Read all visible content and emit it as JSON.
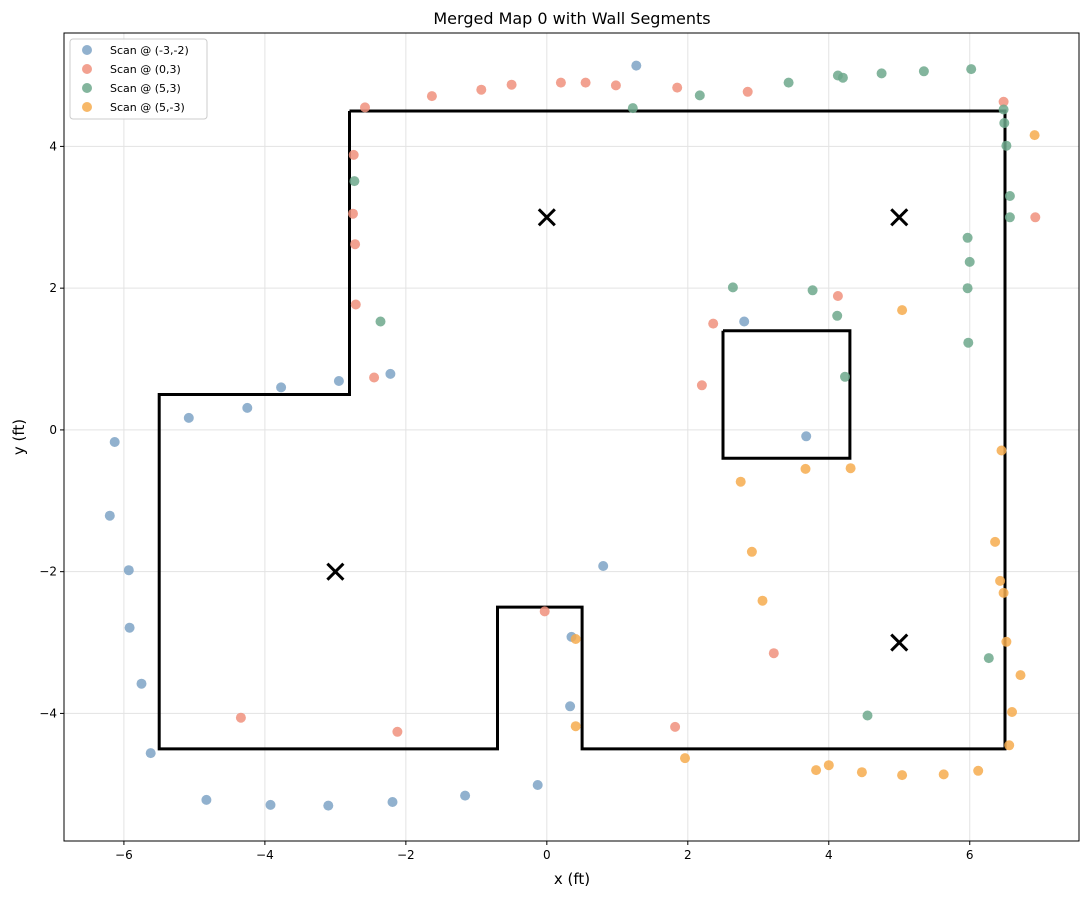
{
  "chart_data": {
    "type": "scatter",
    "title": "Merged Map 0 with Wall Segments",
    "xlabel": "x (ft)",
    "ylabel": "y (ft)",
    "xlim": [
      -6.85,
      7.55
    ],
    "ylim": [
      -5.8,
      5.6
    ],
    "xticks": [
      -6,
      -4,
      -2,
      0,
      2,
      4,
      6
    ],
    "yticks": [
      -4,
      -2,
      0,
      2,
      4
    ],
    "grid": true,
    "legend_position": "top-left",
    "series": [
      {
        "name": "Scan @ (-3,-2)",
        "color": "#7ea3c6",
        "points": [
          [
            1.27,
            5.14
          ],
          [
            -2.95,
            0.69
          ],
          [
            -2.22,
            0.79
          ],
          [
            -3.77,
            0.6
          ],
          [
            -4.25,
            0.31
          ],
          [
            -5.08,
            0.17
          ],
          [
            -6.13,
            -0.17
          ],
          [
            -6.2,
            -1.21
          ],
          [
            -5.93,
            -1.98
          ],
          [
            -5.92,
            -2.79
          ],
          [
            -5.75,
            -3.58
          ],
          [
            -5.62,
            -4.56
          ],
          [
            -4.83,
            -5.22
          ],
          [
            -3.92,
            -5.29
          ],
          [
            -3.1,
            -5.3
          ],
          [
            -2.19,
            -5.25
          ],
          [
            -1.16,
            -5.16
          ],
          [
            -0.13,
            -5.01
          ],
          [
            0.33,
            -3.9
          ],
          [
            0.35,
            -2.92
          ],
          [
            0.8,
            -1.92
          ],
          [
            2.8,
            1.53
          ],
          [
            3.68,
            -0.09
          ]
        ]
      },
      {
        "name": "Scan @ (0,3)",
        "color": "#f0907c",
        "points": [
          [
            -2.58,
            4.55
          ],
          [
            -1.63,
            4.71
          ],
          [
            -0.93,
            4.8
          ],
          [
            -0.5,
            4.87
          ],
          [
            0.2,
            4.9
          ],
          [
            0.55,
            4.9
          ],
          [
            0.98,
            4.86
          ],
          [
            1.85,
            4.83
          ],
          [
            2.85,
            4.77
          ],
          [
            6.48,
            4.63
          ],
          [
            6.93,
            3.0
          ],
          [
            -2.74,
            3.88
          ],
          [
            -2.75,
            3.05
          ],
          [
            -2.72,
            2.62
          ],
          [
            -2.71,
            1.77
          ],
          [
            -2.45,
            0.74
          ],
          [
            2.36,
            1.5
          ],
          [
            4.13,
            1.89
          ],
          [
            2.2,
            0.63
          ],
          [
            -0.03,
            -2.56
          ],
          [
            3.22,
            -3.15
          ],
          [
            1.82,
            -4.19
          ],
          [
            -4.34,
            -4.06
          ],
          [
            -2.12,
            -4.26
          ]
        ]
      },
      {
        "name": "Scan @ (5,3)",
        "color": "#6da88c",
        "points": [
          [
            1.22,
            4.54
          ],
          [
            2.17,
            4.72
          ],
          [
            3.43,
            4.9
          ],
          [
            4.13,
            5.0
          ],
          [
            4.2,
            4.97
          ],
          [
            4.75,
            5.03
          ],
          [
            5.35,
            5.06
          ],
          [
            6.02,
            5.09
          ],
          [
            6.48,
            4.52
          ],
          [
            6.49,
            4.33
          ],
          [
            6.52,
            4.01
          ],
          [
            6.57,
            3.3
          ],
          [
            6.57,
            3.0
          ],
          [
            5.97,
            2.71
          ],
          [
            6.0,
            2.37
          ],
          [
            5.97,
            2.0
          ],
          [
            5.98,
            1.23
          ],
          [
            -2.73,
            3.51
          ],
          [
            -2.36,
            1.53
          ],
          [
            2.64,
            2.01
          ],
          [
            3.77,
            1.97
          ],
          [
            4.12,
            1.61
          ],
          [
            4.23,
            0.75
          ],
          [
            4.55,
            -4.03
          ],
          [
            6.27,
            -3.22
          ]
        ]
      },
      {
        "name": "Scan @ (5,-3)",
        "color": "#f6ac4d",
        "points": [
          [
            6.92,
            4.16
          ],
          [
            5.04,
            1.69
          ],
          [
            6.45,
            -0.29
          ],
          [
            4.31,
            -0.54
          ],
          [
            3.67,
            -0.55
          ],
          [
            2.75,
            -0.73
          ],
          [
            2.91,
            -1.72
          ],
          [
            3.06,
            -2.41
          ],
          [
            6.36,
            -1.58
          ],
          [
            6.43,
            -2.13
          ],
          [
            6.48,
            -2.3
          ],
          [
            6.52,
            -2.99
          ],
          [
            6.72,
            -3.46
          ],
          [
            6.6,
            -3.98
          ],
          [
            6.56,
            -4.45
          ],
          [
            0.41,
            -2.95
          ],
          [
            0.41,
            -4.18
          ],
          [
            1.96,
            -4.63
          ],
          [
            3.82,
            -4.8
          ],
          [
            4.0,
            -4.73
          ],
          [
            4.47,
            -4.83
          ],
          [
            5.04,
            -4.87
          ],
          [
            5.63,
            -4.86
          ],
          [
            6.12,
            -4.81
          ]
        ]
      }
    ],
    "walls": [
      {
        "name": "outer-wall",
        "points": [
          [
            -2.8,
            4.5
          ],
          [
            6.5,
            4.5
          ],
          [
            6.5,
            -4.5
          ],
          [
            0.5,
            -4.5
          ],
          [
            0.5,
            -2.5
          ],
          [
            -0.7,
            -2.5
          ],
          [
            -0.7,
            -4.5
          ],
          [
            -5.5,
            -4.5
          ],
          [
            -5.5,
            0.5
          ],
          [
            -2.8,
            0.5
          ],
          [
            -2.8,
            4.5
          ]
        ]
      },
      {
        "name": "inner-obstacle",
        "points": [
          [
            2.5,
            1.4
          ],
          [
            4.3,
            1.4
          ],
          [
            4.3,
            -0.4
          ],
          [
            2.5,
            -0.4
          ],
          [
            2.5,
            1.4
          ]
        ]
      }
    ],
    "scan_positions": [
      [
        -3,
        -2
      ],
      [
        0,
        3
      ],
      [
        5,
        3
      ],
      [
        5,
        -3
      ]
    ]
  }
}
